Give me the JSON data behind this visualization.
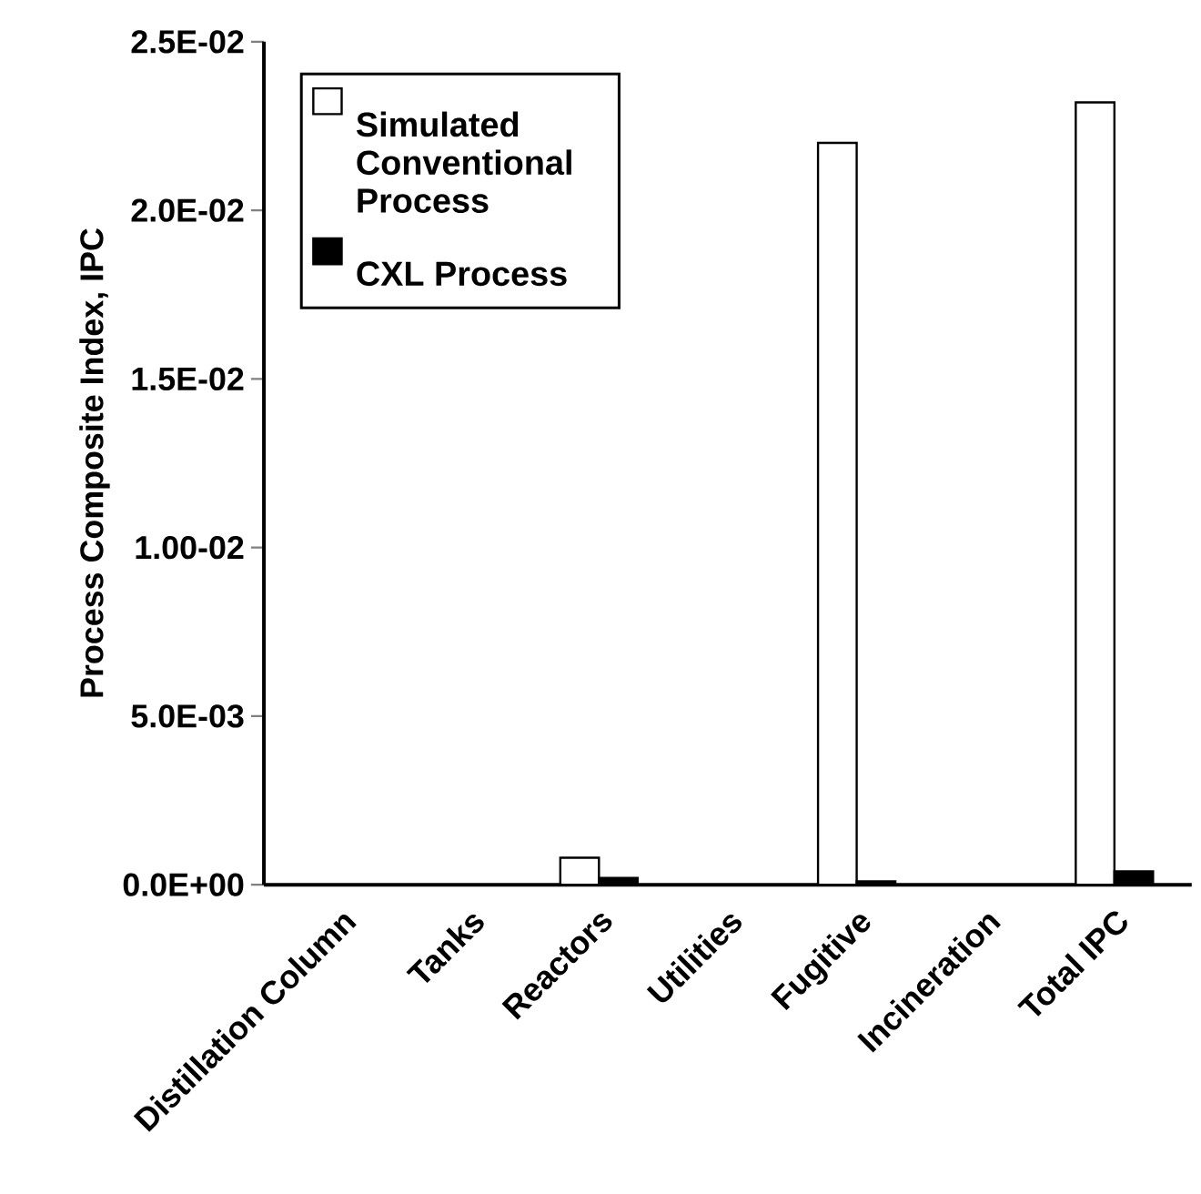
{
  "chart_data": {
    "type": "bar",
    "ylabel": "Process Composite Index, IPC",
    "categories": [
      "Distillation Column",
      "Tanks",
      "Reactors",
      "Utilities",
      "Fugitive",
      "Incineration",
      "Total IPC"
    ],
    "series": [
      {
        "name": "Simulated Conventional Process",
        "color": "#ffffff",
        "values": [
          null,
          null,
          0.0008,
          null,
          0.022,
          null,
          0.0232
        ]
      },
      {
        "name": "CXL Process",
        "color": "#000000",
        "values": [
          null,
          null,
          0.0002,
          null,
          0.0001,
          null,
          0.0004
        ]
      }
    ],
    "ylim": [
      0,
      0.025
    ],
    "yticks": [
      {
        "value": 0,
        "label": "0.0E+00"
      },
      {
        "value": 0.005,
        "label": "5.0E-03"
      },
      {
        "value": 0.01,
        "label": "1.00-02"
      },
      {
        "value": 0.015,
        "label": "1.5E-02"
      },
      {
        "value": 0.02,
        "label": "2.0E-02"
      },
      {
        "value": 0.025,
        "label": "2.5E-02"
      }
    ],
    "legend": "top left",
    "grid": false
  }
}
